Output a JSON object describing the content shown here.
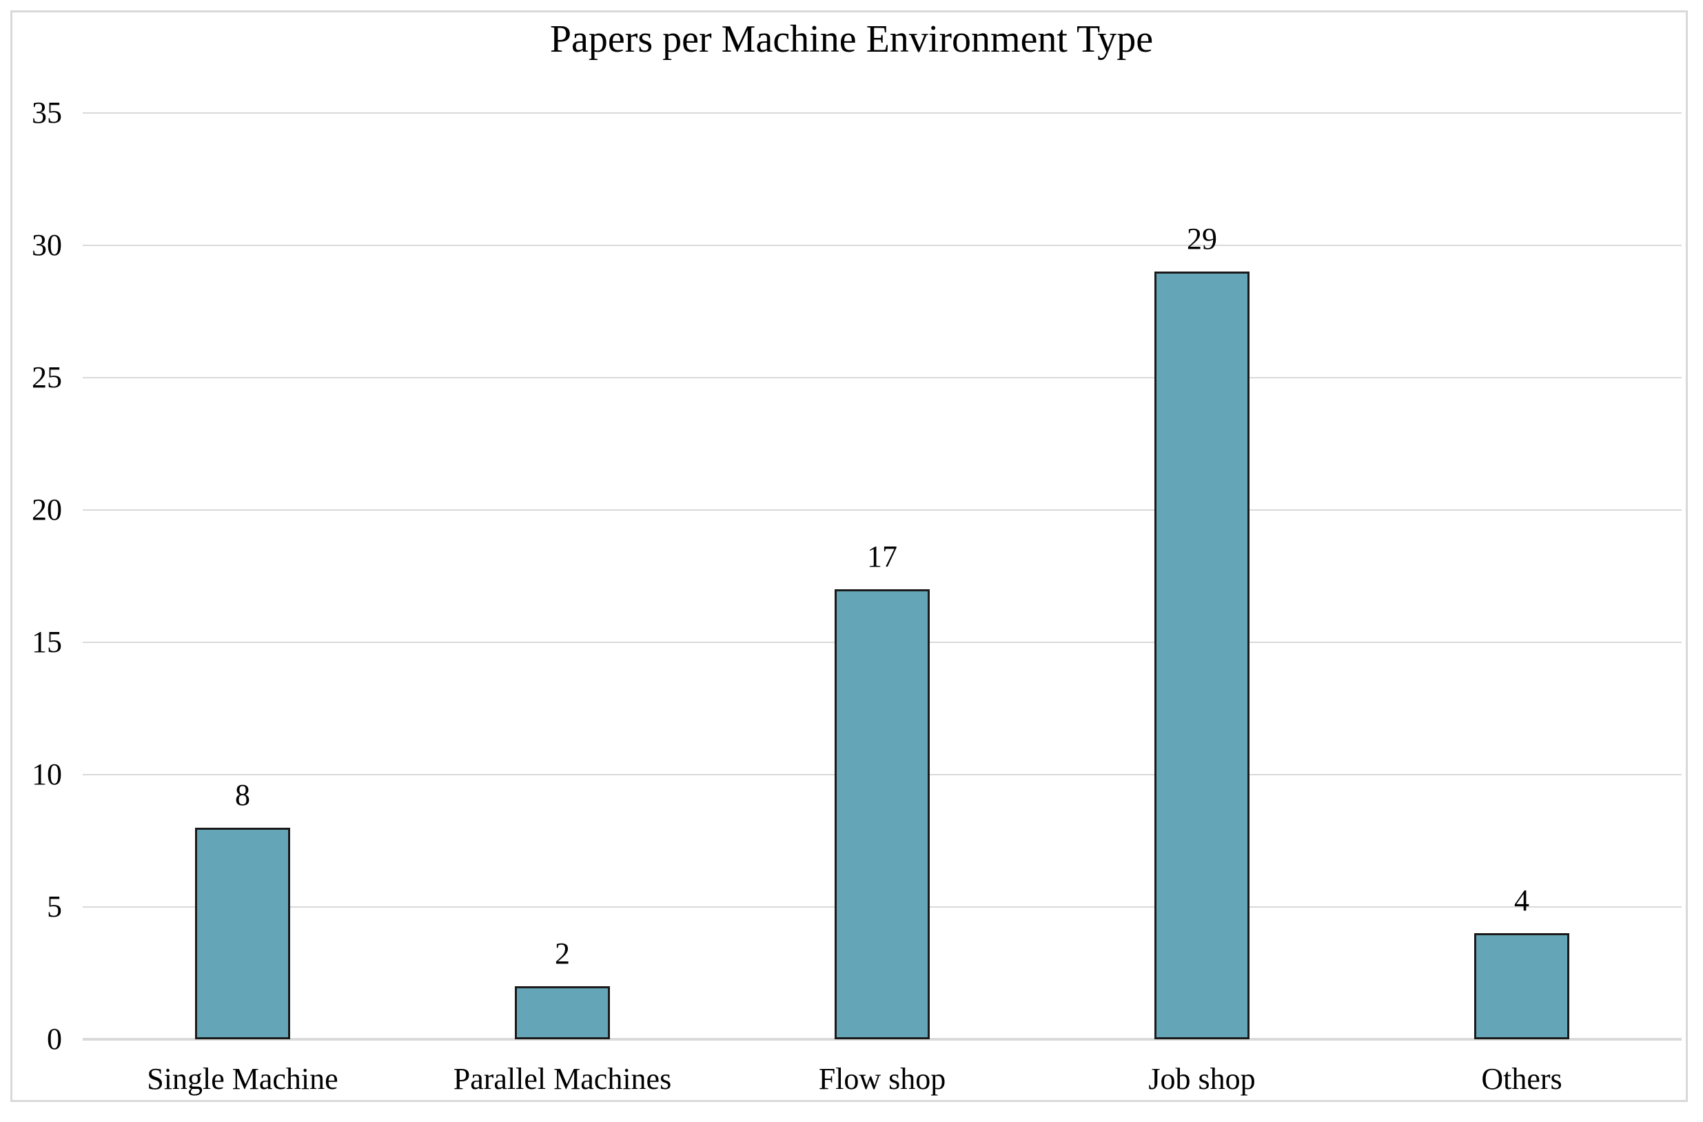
{
  "chart_data": {
    "type": "bar",
    "title": "Papers per Machine Environment Type",
    "categories": [
      "Single Machine",
      "Parallel Machines",
      "Flow shop",
      "Job shop",
      "Others"
    ],
    "values": [
      8,
      2,
      17,
      29,
      4
    ],
    "data_labels_shown": true,
    "xlabel": "",
    "ylabel": "",
    "yticks": [
      0,
      5,
      10,
      15,
      20,
      25,
      30,
      35
    ],
    "ylim": [
      0,
      35
    ],
    "grid": true,
    "legend_position": "none",
    "colors": {
      "bar_fill": "#64a6b8",
      "bar_border": "#1a1a1a",
      "gridline": "#d9d9d9",
      "frame_border": "#d9d9d9",
      "text": "#000000",
      "background": "#ffffff"
    }
  }
}
